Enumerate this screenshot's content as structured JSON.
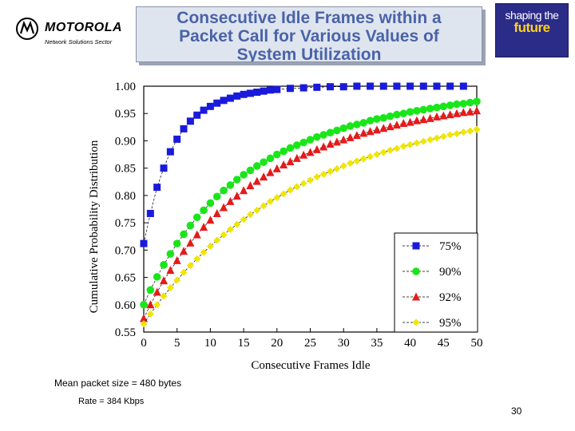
{
  "header": {
    "brand": "MOTOROLA",
    "sector": "Network Solutions Sector",
    "title_lines": [
      "Consecutive Idle Frames within a",
      "Packet Call for Various Values of",
      "System Utilization"
    ],
    "badge_line1": "shaping the",
    "badge_line2": "future"
  },
  "chart_data": {
    "type": "line",
    "xlabel": "Consecutive Frames Idle",
    "ylabel": "Cumulative Probability Distribution",
    "xlim": [
      0,
      50
    ],
    "ylim": [
      0.55,
      1.0
    ],
    "x_ticks": [
      "0",
      "5",
      "10",
      "15",
      "20",
      "25",
      "30",
      "35",
      "40",
      "45",
      "50"
    ],
    "y_ticks": [
      "0.55",
      "0.60",
      "0.65",
      "0.70",
      "0.75",
      "0.80",
      "0.85",
      "0.90",
      "0.95",
      "1.00"
    ],
    "grid": true,
    "legend_position": "bottom-right",
    "series": [
      {
        "name": "75%",
        "color": "#1a1adc",
        "marker": "square",
        "x": [
          0,
          1,
          2,
          3,
          4,
          5,
          6,
          7,
          8,
          9,
          10,
          11,
          12,
          13,
          14,
          15,
          16,
          17,
          18,
          19,
          20,
          22,
          24,
          26,
          28,
          30,
          32,
          34,
          36,
          38,
          40,
          42,
          44,
          46,
          48
        ],
        "values": [
          0.712,
          0.767,
          0.815,
          0.85,
          0.88,
          0.903,
          0.922,
          0.936,
          0.947,
          0.956,
          0.963,
          0.969,
          0.974,
          0.978,
          0.982,
          0.985,
          0.987,
          0.989,
          0.991,
          0.993,
          0.994,
          0.996,
          0.997,
          0.998,
          0.999,
          0.999,
          1.0,
          1.0,
          1.0,
          1.0,
          1.0,
          1.0,
          1.0,
          1.0,
          1.0
        ]
      },
      {
        "name": "90%",
        "color": "#19e619",
        "marker": "circle",
        "x": [
          0,
          1,
          2,
          3,
          4,
          5,
          6,
          7,
          8,
          9,
          10,
          11,
          12,
          13,
          14,
          15,
          16,
          17,
          18,
          19,
          20,
          21,
          22,
          23,
          24,
          25,
          26,
          27,
          28,
          29,
          30,
          31,
          32,
          33,
          34,
          35,
          36,
          37,
          38,
          39,
          40,
          41,
          42,
          43,
          44,
          45,
          46,
          47,
          48,
          49,
          50
        ],
        "values": [
          0.6,
          0.627,
          0.651,
          0.673,
          0.693,
          0.712,
          0.729,
          0.745,
          0.76,
          0.773,
          0.786,
          0.798,
          0.809,
          0.819,
          0.829,
          0.838,
          0.846,
          0.854,
          0.861,
          0.868,
          0.875,
          0.881,
          0.887,
          0.892,
          0.897,
          0.902,
          0.907,
          0.911,
          0.915,
          0.919,
          0.923,
          0.927,
          0.93,
          0.933,
          0.937,
          0.94,
          0.942,
          0.945,
          0.948,
          0.95,
          0.953,
          0.955,
          0.957,
          0.959,
          0.961,
          0.963,
          0.965,
          0.967,
          0.968,
          0.97,
          0.972
        ]
      },
      {
        "name": "92%",
        "color": "#e61a1a",
        "marker": "triangle",
        "x": [
          0,
          1,
          2,
          3,
          4,
          5,
          6,
          7,
          8,
          9,
          10,
          11,
          12,
          13,
          14,
          15,
          16,
          17,
          18,
          19,
          20,
          21,
          22,
          23,
          24,
          25,
          26,
          27,
          28,
          29,
          30,
          31,
          32,
          33,
          34,
          35,
          36,
          37,
          38,
          39,
          40,
          41,
          42,
          43,
          44,
          45,
          46,
          47,
          48,
          49,
          50
        ],
        "values": [
          0.575,
          0.6,
          0.623,
          0.644,
          0.663,
          0.681,
          0.698,
          0.713,
          0.728,
          0.742,
          0.755,
          0.767,
          0.778,
          0.789,
          0.799,
          0.809,
          0.818,
          0.826,
          0.834,
          0.842,
          0.849,
          0.856,
          0.862,
          0.868,
          0.874,
          0.879,
          0.884,
          0.889,
          0.894,
          0.898,
          0.902,
          0.906,
          0.91,
          0.914,
          0.917,
          0.92,
          0.923,
          0.926,
          0.929,
          0.932,
          0.934,
          0.937,
          0.939,
          0.941,
          0.944,
          0.946,
          0.948,
          0.95,
          0.952,
          0.953,
          0.955
        ]
      },
      {
        "name": "95%",
        "color": "#f0e600",
        "marker": "diamond",
        "x": [
          0,
          1,
          2,
          3,
          4,
          5,
          6,
          7,
          8,
          9,
          10,
          11,
          12,
          13,
          14,
          15,
          16,
          17,
          18,
          19,
          20,
          21,
          22,
          23,
          24,
          25,
          26,
          27,
          28,
          29,
          30,
          31,
          32,
          33,
          34,
          35,
          36,
          37,
          38,
          39,
          40,
          41,
          42,
          43,
          44,
          45,
          46,
          47,
          48,
          49,
          50
        ],
        "values": [
          0.565,
          0.583,
          0.6,
          0.616,
          0.631,
          0.645,
          0.659,
          0.672,
          0.684,
          0.696,
          0.707,
          0.718,
          0.728,
          0.738,
          0.747,
          0.756,
          0.765,
          0.773,
          0.781,
          0.789,
          0.796,
          0.803,
          0.81,
          0.816,
          0.822,
          0.828,
          0.834,
          0.839,
          0.844,
          0.849,
          0.854,
          0.859,
          0.863,
          0.867,
          0.871,
          0.875,
          0.879,
          0.883,
          0.886,
          0.89,
          0.893,
          0.896,
          0.899,
          0.902,
          0.905,
          0.908,
          0.911,
          0.913,
          0.916,
          0.918,
          0.921
        ]
      }
    ]
  },
  "notes": {
    "packet_size": "Mean packet size = 480 bytes",
    "rate": "Rate = 384 Kbps"
  },
  "page_number": "30"
}
